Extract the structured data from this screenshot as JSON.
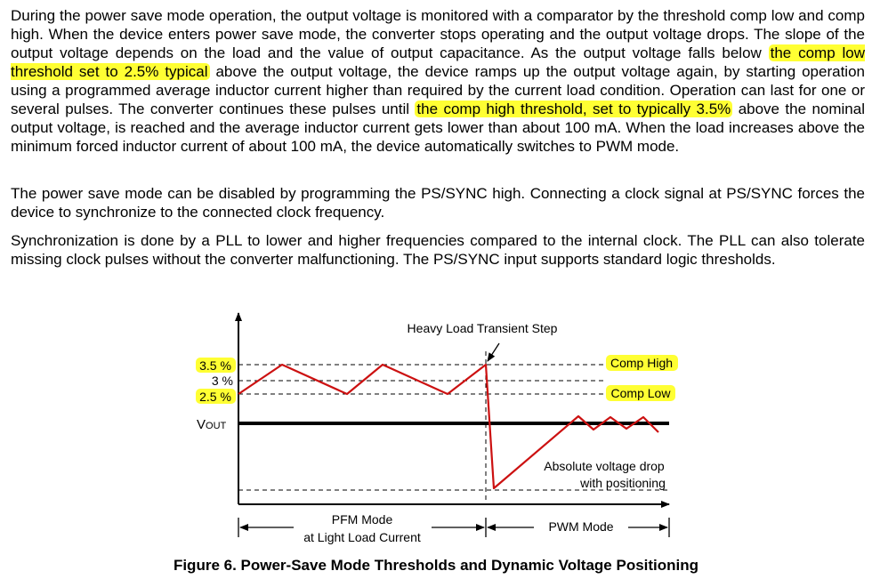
{
  "paragraphs": {
    "p1": {
      "t1": "During the power save mode operation, the output voltage is monitored with a comparator by the threshold comp low and comp high. When the device enters power save mode, the converter stops operating and the output voltage drops. The slope of the output voltage depends on the load and the value of output capacitance. As the output voltage falls below ",
      "h1": "the comp low threshold set to 2.5% typical",
      "t2": " above the output voltage, the device ramps up the output voltage again, by starting operation using a programmed average inductor current higher than required by the current load condition. Operation can last for one or several pulses. The converter continues these pulses until ",
      "h2": "the comp high threshold, set to typically 3.5%",
      "t3": " above the nominal output voltage, is reached and the average inductor current gets lower than about 100 mA. When the load increases above the minimum forced inductor current of about 100 mA, the device automatically switches to PWM mode."
    },
    "p2": "The power save mode can be disabled by programming the PS/SYNC high. Connecting a clock signal at PS/SYNC forces the device to synchronize to the connected clock frequency.",
    "p3": "Synchronization is done by a PLL to lower and higher frequencies compared to the internal clock. The PLL can also tolerate missing clock pulses without the converter malfunctioning. The PS/SYNC input supports standard logic thresholds."
  },
  "figure": {
    "label_35": "3.5 %",
    "label_3": "3 %",
    "label_25": "2.5 %",
    "vout_main": "V",
    "vout_sub": "OUT",
    "heavy_load": "Heavy Load Transient Step",
    "comp_high": "Comp High",
    "comp_low": "Comp Low",
    "abs_drop_1": "Absolute voltage drop",
    "abs_drop_2": "with positioning",
    "pfm_1": "PFM Mode",
    "pfm_2": "at Light Load Current",
    "pwm": "PWM Mode",
    "highlight_color": "#ffff33",
    "waveform_color": "#cc1111"
  },
  "caption": "Figure 6.  Power-Save Mode Thresholds and Dynamic Voltage Positioning"
}
